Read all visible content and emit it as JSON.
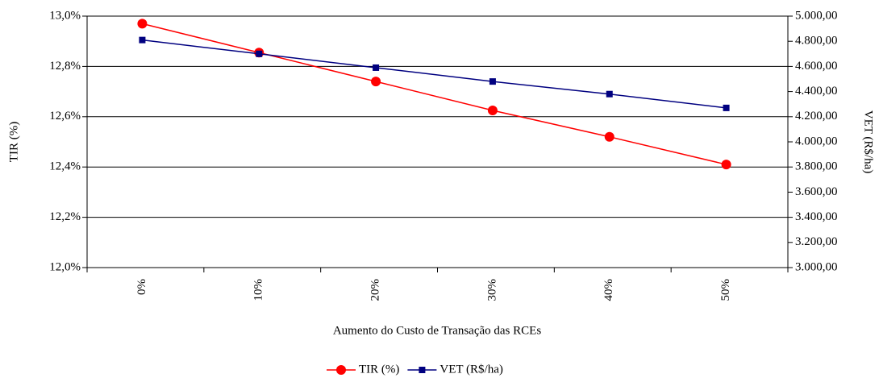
{
  "chart_data": {
    "type": "line",
    "x_label": "Aumento do Custo de Transação das RCEs",
    "y_label": "TIR (%)",
    "y2_label": "VET (R$/ha)",
    "categories": [
      "0%",
      "10%",
      "20%",
      "30%",
      "40%",
      "50%"
    ],
    "series": [
      {
        "name": "TIR (%)",
        "color": "#ff0000",
        "marker": "circle",
        "values": [
          12.97,
          12.855,
          12.74,
          12.625,
          12.52,
          12.41
        ]
      },
      {
        "name": "VET (R$/ha)",
        "color": "#000080",
        "marker": "square",
        "axis": "y2",
        "values": [
          4810,
          4700,
          4590,
          4480,
          4380,
          4270
        ]
      }
    ],
    "ylim": [
      12,
      13
    ],
    "yticks": [
      {
        "value": 12,
        "label": "12,0%"
      },
      {
        "value": 12.2,
        "label": "12,2%"
      },
      {
        "value": 12.4,
        "label": "12,4%"
      },
      {
        "value": 12.6,
        "label": "12,6%"
      },
      {
        "value": 12.8,
        "label": "12,8%"
      },
      {
        "value": 13,
        "label": "13,0%"
      }
    ],
    "y2lim": [
      3000,
      5000
    ],
    "y2ticks": [
      {
        "value": 3000,
        "label": "3.000,00"
      },
      {
        "value": 3200,
        "label": "3.200,00"
      },
      {
        "value": 3400,
        "label": "3.400,00"
      },
      {
        "value": 3600,
        "label": "3.600,00"
      },
      {
        "value": 3800,
        "label": "3.800,00"
      },
      {
        "value": 4000,
        "label": "4.000,00"
      },
      {
        "value": 4200,
        "label": "4.200,00"
      },
      {
        "value": 4400,
        "label": "4.400,00"
      },
      {
        "value": 4600,
        "label": "4.600,00"
      },
      {
        "value": 4800,
        "label": "4.800,00"
      },
      {
        "value": 5000,
        "label": "5.000,00"
      }
    ],
    "grid": true,
    "legend": "bottom"
  }
}
